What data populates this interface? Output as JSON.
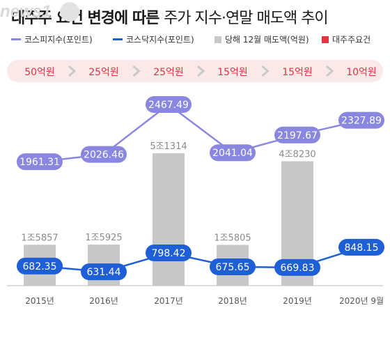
{
  "title_bold": "대주주 요건 변경에 따른",
  "title_rest": "주가 지수·연말 매도액 추이",
  "legend": [
    {
      "label": "코스피지수(포인트)",
      "color": "#8a87e0",
      "kind": "line"
    },
    {
      "label": "코스닥지수(포인트)",
      "color": "#1f5fd6",
      "kind": "line"
    },
    {
      "label": "당해 12월 매도액(억원)",
      "color": "#c8c8c8",
      "kind": "box"
    },
    {
      "label": "대주주요건",
      "color": "#e0353f",
      "kind": "box"
    }
  ],
  "watermark": "news1",
  "chart_data": {
    "type": "bar",
    "categories": [
      "2015년",
      "2016년",
      "2017년",
      "2018년",
      "2019년",
      "2020년 9월"
    ],
    "requirement": [
      "50억원",
      "25억원",
      "25억원",
      "15억원",
      "15억원",
      "10억원"
    ],
    "bars": {
      "name": "당해 12월 매도액(억원)",
      "values": [
        15857,
        15925,
        51314,
        15805,
        48230,
        null
      ],
      "labels": [
        "1조5857",
        "1조5925",
        "5조1314",
        "1조5805",
        "4조8230",
        ""
      ]
    },
    "series": [
      {
        "name": "코스피지수(포인트)",
        "values": [
          1961.31,
          2026.46,
          2467.49,
          2041.04,
          2197.67,
          2327.89
        ],
        "labels": [
          "1961.31",
          "2026.46",
          "2467.49",
          "2041.04",
          "2197.67",
          "2327.89"
        ]
      },
      {
        "name": "코스닥지수(포인트)",
        "values": [
          682.35,
          631.44,
          798.42,
          675.65,
          669.83,
          848.15
        ],
        "labels": [
          "682.35",
          "631.44",
          "798.42",
          "675.65",
          "669.83",
          "848.15"
        ]
      }
    ],
    "colors": {
      "kospi": "#8a87e0",
      "kosdaq": "#1f5fd6",
      "bar": "#c8c8c8",
      "requirement_text": "#e0353f",
      "requirement_band": "#fbe9ea"
    }
  }
}
